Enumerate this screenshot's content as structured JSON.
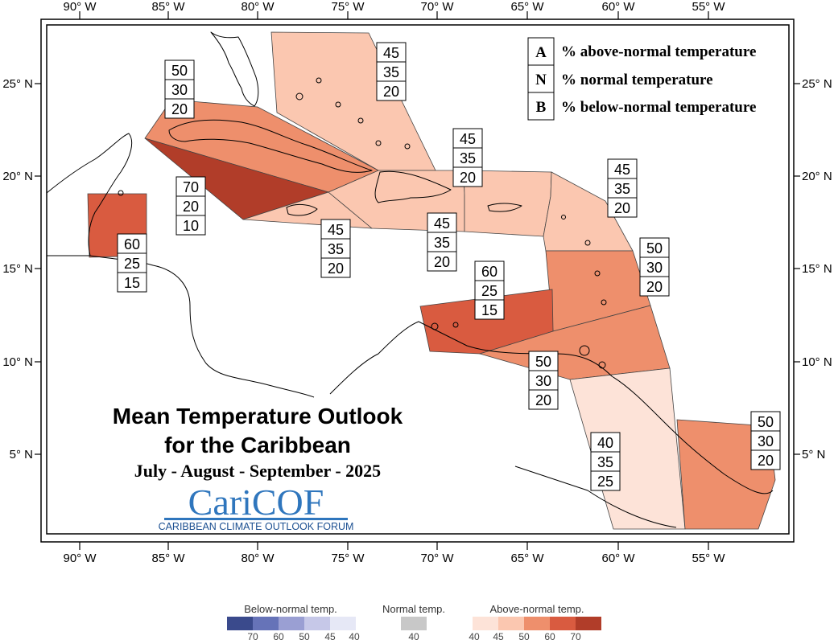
{
  "axes": {
    "longitude_labels": [
      "90° W",
      "85° W",
      "80° W",
      "75° W",
      "70° W",
      "65° W",
      "60° W",
      "55° W"
    ],
    "latitude_labels": [
      "25° N",
      "20° N",
      "15° N",
      "10° N",
      "5° N"
    ]
  },
  "key": [
    {
      "letter": "A",
      "text": "% above-normal temperature"
    },
    {
      "letter": "N",
      "text": "% normal temperature"
    },
    {
      "letter": "B",
      "text": "% below-normal temperature"
    }
  ],
  "regions": [
    {
      "name": "bahamas",
      "above": "45",
      "normal": "35",
      "below": "20",
      "color": "#fbc7b0"
    },
    {
      "name": "cuba",
      "above": "50",
      "normal": "30",
      "below": "20",
      "color": "#ee8f6c"
    },
    {
      "name": "cayman",
      "above": "70",
      "normal": "20",
      "below": "10",
      "color": "#b13d29"
    },
    {
      "name": "belize",
      "above": "60",
      "normal": "25",
      "below": "15",
      "color": "#d95b40"
    },
    {
      "name": "jamaica",
      "above": "45",
      "normal": "35",
      "below": "20",
      "color": "#fbc7b0"
    },
    {
      "name": "hispaniola",
      "above": "45",
      "normal": "35",
      "below": "20",
      "color": "#fbc7b0"
    },
    {
      "name": "puerto-rico",
      "above": "45",
      "normal": "35",
      "below": "20",
      "color": "#fbc7b0"
    },
    {
      "name": "leeward",
      "above": "45",
      "normal": "35",
      "below": "20",
      "color": "#fbc7b0"
    },
    {
      "name": "windward",
      "above": "50",
      "normal": "30",
      "below": "20",
      "color": "#ee8f6c"
    },
    {
      "name": "abc-islands",
      "above": "60",
      "normal": "25",
      "below": "15",
      "color": "#d95b40"
    },
    {
      "name": "trinidad",
      "above": "50",
      "normal": "30",
      "below": "20",
      "color": "#ee8f6c"
    },
    {
      "name": "guyana",
      "above": "40",
      "normal": "35",
      "below": "25",
      "color": "#fde3d8"
    },
    {
      "name": "suriname-guiana",
      "above": "50",
      "normal": "30",
      "below": "20",
      "color": "#ee8f6c"
    }
  ],
  "title": {
    "line1": "Mean Temperature Outlook",
    "line2": "for the Caribbean",
    "period": "July - August - September - 2025"
  },
  "logo": {
    "text": "CariCOF",
    "subtitle": "CARIBBEAN CLIMATE OUTLOOK FORUM"
  },
  "color_scale": {
    "below": {
      "label": "Below-normal temp.",
      "values": [
        "70",
        "60",
        "50",
        "45",
        "40"
      ],
      "colors": [
        "#3a4a8c",
        "#6673b8",
        "#9a9fd3",
        "#c6c8e8",
        "#e6e8f6"
      ]
    },
    "normal": {
      "label": "Normal temp.",
      "values": [
        "40"
      ],
      "colors": [
        "#c8c8c8"
      ]
    },
    "above": {
      "label": "Above-normal temp.",
      "values": [
        "40",
        "45",
        "50",
        "60",
        "70"
      ],
      "colors": [
        "#fde3d8",
        "#fbc7b0",
        "#ee8f6c",
        "#d95b40",
        "#b13d29"
      ]
    }
  }
}
